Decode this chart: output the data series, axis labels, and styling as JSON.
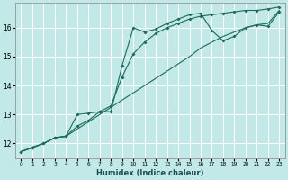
{
  "xlabel": "Humidex (Indice chaleur)",
  "bg_color": "#c2e8e8",
  "grid_color": "#ffffff",
  "line_color": "#1a6b5a",
  "xlim": [
    -0.5,
    23.5
  ],
  "ylim": [
    11.5,
    16.85
  ],
  "yticks": [
    12,
    13,
    14,
    15,
    16
  ],
  "xticks": [
    0,
    1,
    2,
    3,
    4,
    5,
    6,
    7,
    8,
    9,
    10,
    11,
    12,
    13,
    14,
    15,
    16,
    17,
    18,
    19,
    20,
    21,
    22,
    23
  ],
  "series": {
    "line1_x": [
      0,
      1,
      2,
      3,
      4,
      5,
      6,
      7,
      8,
      9,
      10,
      11,
      12,
      13,
      14,
      15,
      16,
      17,
      18,
      19,
      20,
      21,
      22,
      23
    ],
    "line1_y": [
      11.72,
      11.85,
      12.0,
      12.2,
      12.25,
      13.0,
      13.05,
      13.1,
      13.1,
      14.7,
      16.0,
      15.85,
      15.95,
      16.15,
      16.3,
      16.45,
      16.5,
      15.9,
      15.55,
      15.7,
      16.0,
      16.1,
      16.05,
      16.55
    ],
    "line2_x": [
      0,
      1,
      2,
      3,
      4,
      5,
      6,
      7,
      8,
      9,
      10,
      11,
      12,
      13,
      14,
      15,
      16,
      17,
      18,
      19,
      20,
      21,
      22,
      23
    ],
    "line2_y": [
      11.72,
      11.87,
      12.0,
      12.2,
      12.25,
      12.6,
      12.8,
      13.1,
      13.3,
      14.3,
      15.1,
      15.5,
      15.8,
      16.0,
      16.15,
      16.3,
      16.4,
      16.45,
      16.5,
      16.55,
      16.6,
      16.6,
      16.65,
      16.72
    ],
    "line3_x": [
      0,
      1,
      2,
      3,
      4,
      5,
      6,
      7,
      8,
      9,
      10,
      11,
      12,
      13,
      14,
      15,
      16,
      17,
      18,
      19,
      20,
      21,
      22,
      23
    ],
    "line3_y": [
      11.72,
      11.87,
      12.0,
      12.2,
      12.25,
      12.5,
      12.75,
      13.0,
      13.25,
      13.5,
      13.75,
      14.0,
      14.25,
      14.5,
      14.75,
      15.0,
      15.3,
      15.5,
      15.7,
      15.85,
      16.0,
      16.1,
      16.15,
      16.6
    ]
  }
}
